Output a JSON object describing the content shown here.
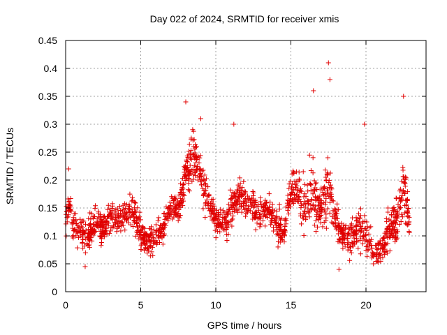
{
  "chart_data": {
    "type": "scatter",
    "title": "Day 022 of 2024, SRMTID for receiver xmis",
    "xlabel": "GPS time / hours",
    "ylabel": "SRMTID / TECUs",
    "xlim": [
      0,
      24
    ],
    "ylim": [
      0,
      0.45
    ],
    "x_ticks": [
      0,
      5,
      10,
      15,
      20
    ],
    "x_tick_labels": [
      "0",
      "5",
      "10",
      "15",
      "20"
    ],
    "y_ticks": [
      0,
      0.05,
      0.1,
      0.15,
      0.2,
      0.25,
      0.3,
      0.35,
      0.4,
      0.45
    ],
    "y_tick_labels": [
      "0",
      "0.05",
      "0.1",
      "0.15",
      "0.2",
      "0.25",
      "0.3",
      "0.35",
      "0.4",
      "0.45"
    ],
    "grid": true,
    "marker": "+",
    "series": [
      {
        "name": "SRMTID",
        "color": "#e00000",
        "profile_x": [
          0,
          0.2,
          0.5,
          1.0,
          1.5,
          2.0,
          2.5,
          3.0,
          3.5,
          4.0,
          4.5,
          5.0,
          5.5,
          6.0,
          6.5,
          7.0,
          7.5,
          8.0,
          8.5,
          9.0,
          9.5,
          10.0,
          10.5,
          11.0,
          11.5,
          12.0,
          12.5,
          13.0,
          13.5,
          14.0,
          14.5,
          15.0,
          15.5,
          16.0,
          16.5,
          17.0,
          17.5,
          18.0,
          18.5,
          19.0,
          19.5,
          20.0,
          20.5,
          21.0,
          21.5,
          22.0,
          22.5,
          22.9
        ],
        "profile_mean": [
          0.12,
          0.16,
          0.12,
          0.11,
          0.1,
          0.13,
          0.11,
          0.14,
          0.13,
          0.14,
          0.15,
          0.1,
          0.09,
          0.1,
          0.11,
          0.16,
          0.14,
          0.21,
          0.25,
          0.2,
          0.16,
          0.13,
          0.12,
          0.15,
          0.17,
          0.16,
          0.15,
          0.14,
          0.15,
          0.13,
          0.1,
          0.19,
          0.17,
          0.15,
          0.18,
          0.14,
          0.2,
          0.13,
          0.1,
          0.09,
          0.12,
          0.1,
          0.07,
          0.08,
          0.11,
          0.12,
          0.2,
          0.12
        ],
        "profile_spread": [
          0.05,
          0.04,
          0.04,
          0.04,
          0.04,
          0.04,
          0.04,
          0.04,
          0.04,
          0.04,
          0.04,
          0.04,
          0.04,
          0.04,
          0.04,
          0.04,
          0.04,
          0.06,
          0.07,
          0.06,
          0.05,
          0.04,
          0.04,
          0.05,
          0.04,
          0.04,
          0.04,
          0.04,
          0.04,
          0.04,
          0.04,
          0.06,
          0.06,
          0.07,
          0.09,
          0.06,
          0.1,
          0.05,
          0.04,
          0.05,
          0.06,
          0.05,
          0.03,
          0.04,
          0.05,
          0.05,
          0.08,
          0.04
        ],
        "point_count": 1800,
        "notable_points": [
          {
            "x": 8.0,
            "y": 0.34
          },
          {
            "x": 9.0,
            "y": 0.31
          },
          {
            "x": 11.2,
            "y": 0.3
          },
          {
            "x": 16.5,
            "y": 0.36
          },
          {
            "x": 17.5,
            "y": 0.41
          },
          {
            "x": 17.6,
            "y": 0.38
          },
          {
            "x": 19.9,
            "y": 0.3
          },
          {
            "x": 22.5,
            "y": 0.35
          },
          {
            "x": 0.2,
            "y": 0.22
          },
          {
            "x": 1.3,
            "y": 0.045
          },
          {
            "x": 18.2,
            "y": 0.04
          },
          {
            "x": 20.5,
            "y": 0.05
          }
        ]
      }
    ]
  }
}
